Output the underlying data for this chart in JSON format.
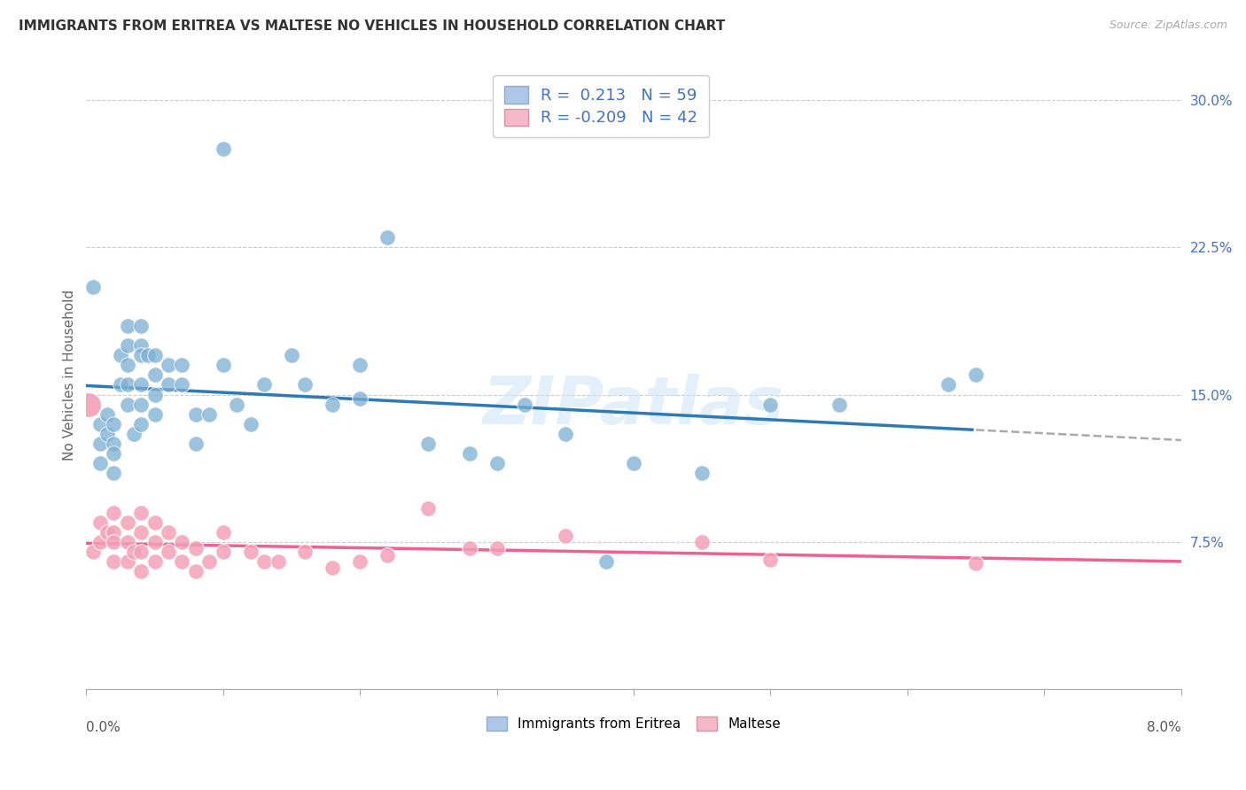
{
  "title": "IMMIGRANTS FROM ERITREA VS MALTESE NO VEHICLES IN HOUSEHOLD CORRELATION CHART",
  "source": "Source: ZipAtlas.com",
  "ylabel": "No Vehicles in Household",
  "yticks": [
    0.0,
    0.075,
    0.15,
    0.225,
    0.3
  ],
  "ytick_labels": [
    "",
    "7.5%",
    "15.0%",
    "22.5%",
    "30.0%"
  ],
  "xlim": [
    0.0,
    0.08
  ],
  "ylim": [
    0.0,
    0.32
  ],
  "series1_color": "#7bafd4",
  "series2_color": "#f4a0b8",
  "line1_color": "#2c7bb6",
  "line2_color": "#f06090",
  "line1_dash_color": "#aaaaaa",
  "watermark_text": "ZIPatlas",
  "series1_x": [
    0.0005,
    0.001,
    0.001,
    0.001,
    0.0015,
    0.0015,
    0.002,
    0.002,
    0.002,
    0.002,
    0.0025,
    0.0025,
    0.003,
    0.003,
    0.003,
    0.003,
    0.003,
    0.0035,
    0.004,
    0.004,
    0.004,
    0.004,
    0.004,
    0.004,
    0.0045,
    0.005,
    0.005,
    0.005,
    0.005,
    0.006,
    0.006,
    0.007,
    0.007,
    0.008,
    0.008,
    0.009,
    0.01,
    0.01,
    0.011,
    0.012,
    0.013,
    0.015,
    0.016,
    0.018,
    0.02,
    0.02,
    0.022,
    0.025,
    0.028,
    0.03,
    0.032,
    0.035,
    0.038,
    0.04,
    0.045,
    0.05,
    0.055,
    0.063,
    0.065
  ],
  "series1_y": [
    0.205,
    0.135,
    0.125,
    0.115,
    0.14,
    0.13,
    0.135,
    0.125,
    0.12,
    0.11,
    0.17,
    0.155,
    0.185,
    0.175,
    0.165,
    0.155,
    0.145,
    0.13,
    0.185,
    0.175,
    0.17,
    0.155,
    0.145,
    0.135,
    0.17,
    0.17,
    0.16,
    0.15,
    0.14,
    0.165,
    0.155,
    0.165,
    0.155,
    0.14,
    0.125,
    0.14,
    0.275,
    0.165,
    0.145,
    0.135,
    0.155,
    0.17,
    0.155,
    0.145,
    0.165,
    0.148,
    0.23,
    0.125,
    0.12,
    0.115,
    0.145,
    0.13,
    0.065,
    0.115,
    0.11,
    0.145,
    0.145,
    0.155,
    0.16
  ],
  "series2_x": [
    0.0005,
    0.001,
    0.001,
    0.0015,
    0.002,
    0.002,
    0.002,
    0.002,
    0.003,
    0.003,
    0.003,
    0.0035,
    0.004,
    0.004,
    0.004,
    0.004,
    0.005,
    0.005,
    0.005,
    0.006,
    0.006,
    0.007,
    0.007,
    0.008,
    0.008,
    0.009,
    0.01,
    0.01,
    0.012,
    0.013,
    0.014,
    0.016,
    0.018,
    0.02,
    0.022,
    0.025,
    0.028,
    0.03,
    0.035,
    0.045,
    0.05,
    0.065
  ],
  "series2_y": [
    0.07,
    0.085,
    0.075,
    0.08,
    0.09,
    0.08,
    0.075,
    0.065,
    0.085,
    0.075,
    0.065,
    0.07,
    0.09,
    0.08,
    0.07,
    0.06,
    0.085,
    0.075,
    0.065,
    0.08,
    0.07,
    0.075,
    0.065,
    0.072,
    0.06,
    0.065,
    0.08,
    0.07,
    0.07,
    0.065,
    0.065,
    0.07,
    0.062,
    0.065,
    0.068,
    0.092,
    0.072,
    0.072,
    0.078,
    0.075,
    0.066,
    0.064
  ],
  "line1_x_solid_end": 0.065,
  "line1_intercept": 0.1,
  "line1_slope": 0.8,
  "line2_intercept": 0.083,
  "line2_slope": -0.28
}
